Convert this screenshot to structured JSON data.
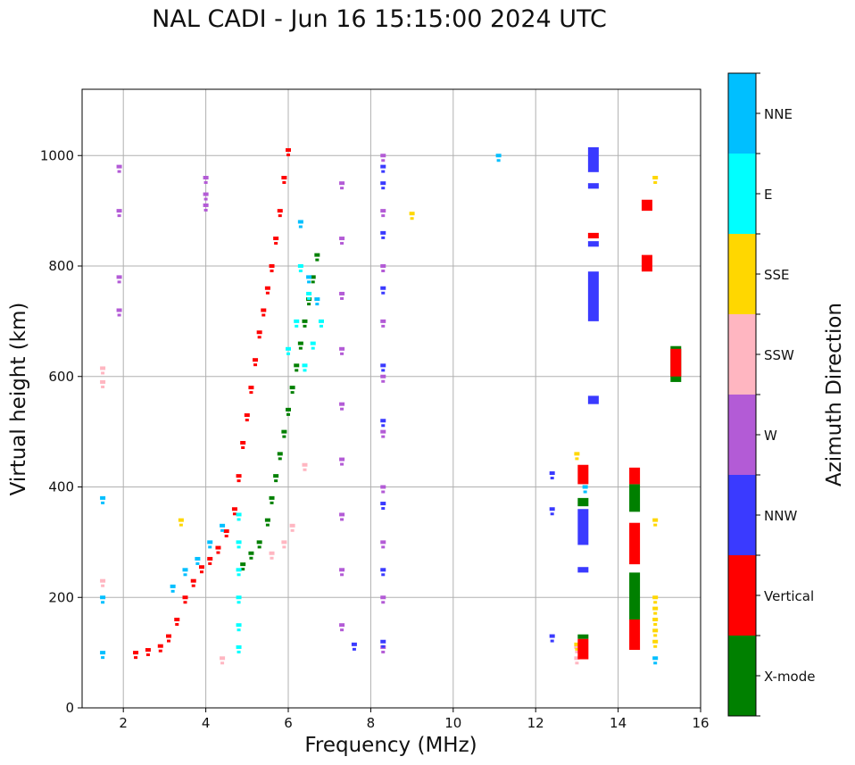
{
  "chart_data": {
    "type": "scatter",
    "title": "NAL CADI - Jun 16 15:15:00 2024 UTC",
    "xlabel": "Frequency (MHz)",
    "ylabel": "Virtual height (km)",
    "xlim": [
      1,
      16
    ],
    "ylim": [
      0,
      1120
    ],
    "xticks": [
      2,
      4,
      6,
      8,
      10,
      12,
      14,
      16
    ],
    "yticks": [
      0,
      200,
      400,
      600,
      800,
      1000
    ],
    "grid": true,
    "colorbar": {
      "label": "Azimuth Direction",
      "categories": [
        {
          "name": "X-mode",
          "color": "#008000"
        },
        {
          "name": "Vertical",
          "color": "#ff0000"
        },
        {
          "name": "NNW",
          "color": "#3a3aff"
        },
        {
          "name": "W",
          "color": "#b35bd6"
        },
        {
          "name": "SSW",
          "color": "#ffb6c1"
        },
        {
          "name": "SSE",
          "color": "#ffd700"
        },
        {
          "name": "E",
          "color": "#00ffff"
        },
        {
          "name": "NNE",
          "color": "#00bfff"
        }
      ]
    },
    "traces": [
      {
        "name": "Vertical",
        "color": "#ff0000",
        "points": [
          [
            2.3,
            100
          ],
          [
            2.6,
            105
          ],
          [
            2.9,
            112
          ],
          [
            3.1,
            130
          ],
          [
            3.3,
            160
          ],
          [
            3.5,
            200
          ],
          [
            3.7,
            230
          ],
          [
            3.9,
            255
          ],
          [
            4.1,
            270
          ],
          [
            4.3,
            290
          ],
          [
            4.5,
            320
          ],
          [
            4.7,
            360
          ],
          [
            4.8,
            420
          ],
          [
            4.9,
            480
          ],
          [
            5.0,
            530
          ],
          [
            5.1,
            580
          ],
          [
            5.2,
            630
          ],
          [
            5.3,
            680
          ],
          [
            5.4,
            720
          ],
          [
            5.5,
            760
          ],
          [
            5.6,
            800
          ],
          [
            5.7,
            850
          ],
          [
            5.8,
            900
          ],
          [
            5.9,
            960
          ],
          [
            6.0,
            1010
          ]
        ]
      },
      {
        "name": "X-mode",
        "color": "#008000",
        "points": [
          [
            4.9,
            260
          ],
          [
            5.1,
            280
          ],
          [
            5.3,
            300
          ],
          [
            5.5,
            340
          ],
          [
            5.6,
            380
          ],
          [
            5.7,
            420
          ],
          [
            5.8,
            460
          ],
          [
            5.9,
            500
          ],
          [
            6.0,
            540
          ],
          [
            6.1,
            580
          ],
          [
            6.2,
            620
          ],
          [
            6.3,
            660
          ],
          [
            6.4,
            700
          ],
          [
            6.5,
            740
          ],
          [
            6.6,
            780
          ],
          [
            6.7,
            820
          ]
        ]
      },
      {
        "name": "E",
        "color": "#00ffff",
        "points": [
          [
            4.8,
            110
          ],
          [
            4.8,
            150
          ],
          [
            4.8,
            200
          ],
          [
            4.8,
            250
          ],
          [
            4.8,
            300
          ],
          [
            4.8,
            350
          ],
          [
            6.0,
            650
          ],
          [
            6.2,
            700
          ],
          [
            6.4,
            620
          ],
          [
            6.6,
            660
          ],
          [
            6.8,
            700
          ],
          [
            6.5,
            750
          ],
          [
            6.3,
            800
          ]
        ]
      },
      {
        "name": "NNE",
        "color": "#00bfff",
        "points": [
          [
            1.5,
            100
          ],
          [
            1.5,
            200
          ],
          [
            1.5,
            380
          ],
          [
            3.2,
            220
          ],
          [
            3.5,
            250
          ],
          [
            3.8,
            270
          ],
          [
            4.1,
            300
          ],
          [
            4.4,
            330
          ],
          [
            6.3,
            880
          ],
          [
            6.5,
            780
          ],
          [
            6.7,
            740
          ]
        ]
      },
      {
        "name": "W",
        "color": "#b35bd6",
        "points": [
          [
            1.9,
            980
          ],
          [
            1.9,
            900
          ],
          [
            1.9,
            780
          ],
          [
            1.9,
            720
          ],
          [
            4.0,
            960
          ],
          [
            4.0,
            930
          ],
          [
            4.0,
            910
          ],
          [
            8.3,
            1000
          ],
          [
            8.3,
            900
          ],
          [
            8.3,
            800
          ],
          [
            8.3,
            700
          ],
          [
            8.3,
            600
          ],
          [
            8.3,
            500
          ],
          [
            8.3,
            400
          ],
          [
            8.3,
            300
          ],
          [
            8.3,
            200
          ],
          [
            8.3,
            110
          ],
          [
            7.3,
            950
          ],
          [
            7.3,
            850
          ],
          [
            7.3,
            750
          ],
          [
            7.3,
            650
          ],
          [
            7.3,
            550
          ],
          [
            7.3,
            450
          ],
          [
            7.3,
            350
          ],
          [
            7.3,
            250
          ],
          [
            7.3,
            150
          ]
        ]
      },
      {
        "name": "NNW",
        "color": "#3a3aff",
        "points": [
          [
            8.3,
            980
          ],
          [
            8.3,
            950
          ],
          [
            8.3,
            860
          ],
          [
            8.3,
            760
          ],
          [
            8.3,
            620
          ],
          [
            8.3,
            520
          ],
          [
            8.3,
            370
          ],
          [
            8.3,
            250
          ],
          [
            8.3,
            120
          ],
          [
            12.4,
            425
          ],
          [
            12.4,
            360
          ],
          [
            12.4,
            130
          ],
          [
            7.6,
            115
          ]
        ]
      },
      {
        "name": "SSW",
        "color": "#ffb6c1",
        "points": [
          [
            1.5,
            590
          ],
          [
            1.5,
            615
          ],
          [
            1.5,
            230
          ],
          [
            4.4,
            90
          ],
          [
            5.6,
            280
          ],
          [
            5.9,
            300
          ],
          [
            6.1,
            330
          ],
          [
            6.4,
            440
          ],
          [
            13.0,
            90
          ],
          [
            13.0,
            110
          ]
        ]
      },
      {
        "name": "SSE",
        "color": "#ffd700",
        "points": [
          [
            3.4,
            340
          ],
          [
            9.0,
            895
          ],
          [
            13.0,
            460
          ],
          [
            13.0,
            115
          ],
          [
            14.9,
            960
          ],
          [
            14.9,
            340
          ],
          [
            14.9,
            200
          ],
          [
            14.9,
            180
          ],
          [
            14.9,
            160
          ],
          [
            14.9,
            140
          ],
          [
            14.9,
            120
          ]
        ]
      },
      {
        "name": "NNE-high",
        "color": "#00bfff",
        "points": [
          [
            11.1,
            1000
          ],
          [
            13.2,
            400
          ],
          [
            14.9,
            90
          ]
        ]
      }
    ],
    "bars": [
      {
        "color": "#3a3aff",
        "x": 13.4,
        "y0": 970,
        "y1": 1015
      },
      {
        "color": "#3a3aff",
        "x": 13.4,
        "y0": 940,
        "y1": 950
      },
      {
        "color": "#3a3aff",
        "x": 13.4,
        "y0": 700,
        "y1": 790
      },
      {
        "color": "#3a3aff",
        "x": 13.4,
        "y0": 835,
        "y1": 845
      },
      {
        "color": "#ff0000",
        "x": 13.4,
        "y0": 850,
        "y1": 860
      },
      {
        "color": "#3a3aff",
        "x": 13.4,
        "y0": 550,
        "y1": 565
      },
      {
        "color": "#ff0000",
        "x": 13.15,
        "y0": 405,
        "y1": 440
      },
      {
        "color": "#3a3aff",
        "x": 13.15,
        "y0": 295,
        "y1": 360
      },
      {
        "color": "#008000",
        "x": 13.15,
        "y0": 365,
        "y1": 380
      },
      {
        "color": "#3a3aff",
        "x": 13.15,
        "y0": 245,
        "y1": 255
      },
      {
        "color": "#ff0000",
        "x": 13.15,
        "y0": 88,
        "y1": 125
      },
      {
        "color": "#008000",
        "x": 13.15,
        "y0": 125,
        "y1": 133
      },
      {
        "color": "#ff0000",
        "x": 14.4,
        "y0": 105,
        "y1": 160
      },
      {
        "color": "#008000",
        "x": 14.4,
        "y0": 160,
        "y1": 245
      },
      {
        "color": "#ff0000",
        "x": 14.4,
        "y0": 260,
        "y1": 335
      },
      {
        "color": "#008000",
        "x": 14.4,
        "y0": 355,
        "y1": 405
      },
      {
        "color": "#ff0000",
        "x": 14.4,
        "y0": 405,
        "y1": 435
      },
      {
        "color": "#ff0000",
        "x": 14.7,
        "y0": 790,
        "y1": 820
      },
      {
        "color": "#ff0000",
        "x": 14.7,
        "y0": 900,
        "y1": 920
      },
      {
        "color": "#008000",
        "x": 15.4,
        "y0": 590,
        "y1": 655
      },
      {
        "color": "#ff0000",
        "x": 15.4,
        "y0": 600,
        "y1": 650
      }
    ]
  }
}
